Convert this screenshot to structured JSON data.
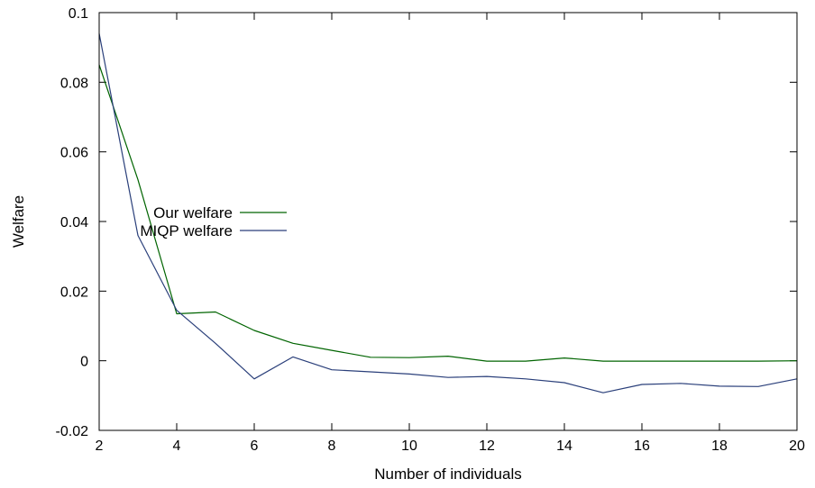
{
  "chart_data": {
    "type": "line",
    "title": "",
    "xlabel": "Number of individuals",
    "ylabel": "Welfare",
    "xlim": [
      2,
      20
    ],
    "ylim": [
      -0.02,
      0.1
    ],
    "xticks": [
      2,
      4,
      6,
      8,
      10,
      12,
      14,
      16,
      18,
      20
    ],
    "yticks": [
      -0.02,
      0,
      0.02,
      0.04,
      0.06,
      0.08,
      0.1
    ],
    "ytick_labels": [
      "-0.02",
      "0",
      "0.02",
      "0.04",
      "0.06",
      "0.08",
      "0.1"
    ],
    "grid": false,
    "legend": "center-left",
    "x": [
      2,
      3,
      4,
      5,
      6,
      7,
      8,
      9,
      10,
      11,
      12,
      13,
      14,
      15,
      16,
      17,
      18,
      19,
      20
    ],
    "series": [
      {
        "name": "Our welfare",
        "color": "#006400",
        "values": [
          0.085,
          0.052,
          0.0135,
          0.014,
          0.0087,
          0.005,
          0.003,
          0.001,
          0.0009,
          0.0013,
          -0.0001,
          -0.0001,
          0.0008,
          -0.0001,
          -0.0001,
          -0.0001,
          -0.0001,
          -0.0001,
          0.0
        ]
      },
      {
        "name": "MIQP welfare",
        "color": "#2a3f7a",
        "values": [
          0.094,
          0.036,
          0.0145,
          0.005,
          -0.0052,
          0.0011,
          -0.0026,
          -0.0032,
          -0.0038,
          -0.0048,
          -0.0045,
          -0.0052,
          -0.0063,
          -0.0092,
          -0.0068,
          -0.0065,
          -0.0073,
          -0.0074,
          -0.0052
        ]
      }
    ]
  }
}
